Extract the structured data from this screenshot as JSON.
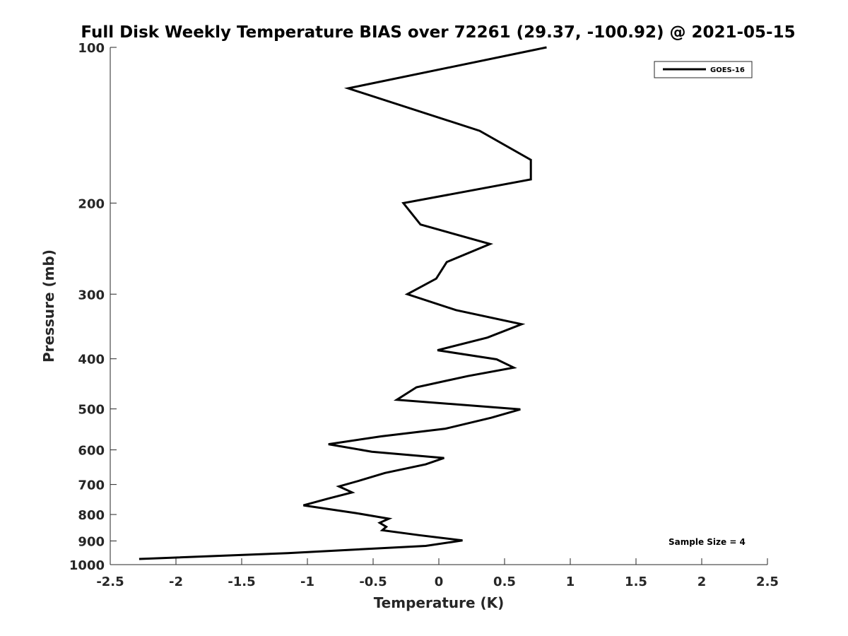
{
  "chart_data": {
    "type": "line",
    "title": "Full Disk Weekly Temperature BIAS over 72261 (29.37, -100.92) @ 2021-05-15",
    "xlabel": "Temperature (K)",
    "ylabel": "Pressure (mb)",
    "xlim": [
      -2.5,
      2.5
    ],
    "ylim": [
      100,
      1000
    ],
    "y_scale": "log",
    "y_reversed": true,
    "grid": false,
    "legend_position": "top-right",
    "x_ticks": [
      -2.5,
      -2,
      -1.5,
      -1,
      -0.5,
      0,
      0.5,
      1,
      1.5,
      2,
      2.5
    ],
    "x_tick_labels": [
      "-2.5",
      "-2",
      "-1.5",
      "-1",
      "-0.5",
      "0",
      "0.5",
      "1",
      "1.5",
      "2",
      "2.5"
    ],
    "y_ticks": [
      100,
      200,
      300,
      400,
      500,
      600,
      700,
      800,
      900,
      1000
    ],
    "y_tick_labels": [
      "100",
      "200",
      "300",
      "400",
      "500",
      "600",
      "700",
      "800",
      "900",
      "1000"
    ],
    "series": [
      {
        "name": "GOES-16",
        "color": "#000000",
        "points": [
          {
            "x": 0.82,
            "y": 100
          },
          {
            "x": -0.69,
            "y": 120
          },
          {
            "x": 0.31,
            "y": 145
          },
          {
            "x": 0.7,
            "y": 165
          },
          {
            "x": 0.7,
            "y": 180
          },
          {
            "x": -0.27,
            "y": 200
          },
          {
            "x": -0.14,
            "y": 220
          },
          {
            "x": 0.39,
            "y": 240
          },
          {
            "x": 0.06,
            "y": 260
          },
          {
            "x": -0.02,
            "y": 280
          },
          {
            "x": -0.24,
            "y": 300
          },
          {
            "x": 0.13,
            "y": 322
          },
          {
            "x": 0.63,
            "y": 343
          },
          {
            "x": 0.37,
            "y": 364
          },
          {
            "x": -0.01,
            "y": 385
          },
          {
            "x": 0.44,
            "y": 401
          },
          {
            "x": 0.57,
            "y": 416
          },
          {
            "x": 0.22,
            "y": 432
          },
          {
            "x": -0.17,
            "y": 454
          },
          {
            "x": -0.32,
            "y": 480
          },
          {
            "x": 0.62,
            "y": 501
          },
          {
            "x": 0.4,
            "y": 520
          },
          {
            "x": 0.05,
            "y": 546
          },
          {
            "x": -0.44,
            "y": 565
          },
          {
            "x": -0.84,
            "y": 585
          },
          {
            "x": -0.51,
            "y": 605
          },
          {
            "x": 0.04,
            "y": 622
          },
          {
            "x": -0.1,
            "y": 640
          },
          {
            "x": -0.41,
            "y": 665
          },
          {
            "x": -0.62,
            "y": 690
          },
          {
            "x": -0.76,
            "y": 706
          },
          {
            "x": -0.66,
            "y": 725
          },
          {
            "x": -0.84,
            "y": 745
          },
          {
            "x": -1.03,
            "y": 768
          },
          {
            "x": -0.63,
            "y": 795
          },
          {
            "x": -0.38,
            "y": 815
          },
          {
            "x": -0.45,
            "y": 830
          },
          {
            "x": -0.4,
            "y": 845
          },
          {
            "x": -0.43,
            "y": 858
          },
          {
            "x": -0.15,
            "y": 877
          },
          {
            "x": 0.18,
            "y": 898
          },
          {
            "x": -0.1,
            "y": 920
          },
          {
            "x": -1.15,
            "y": 950
          },
          {
            "x": -2.28,
            "y": 975
          }
        ]
      }
    ],
    "legend": [
      {
        "label": "GOES-16",
        "color": "#000000"
      }
    ],
    "annotations": [
      {
        "text": "Sample Size = 4"
      }
    ]
  }
}
